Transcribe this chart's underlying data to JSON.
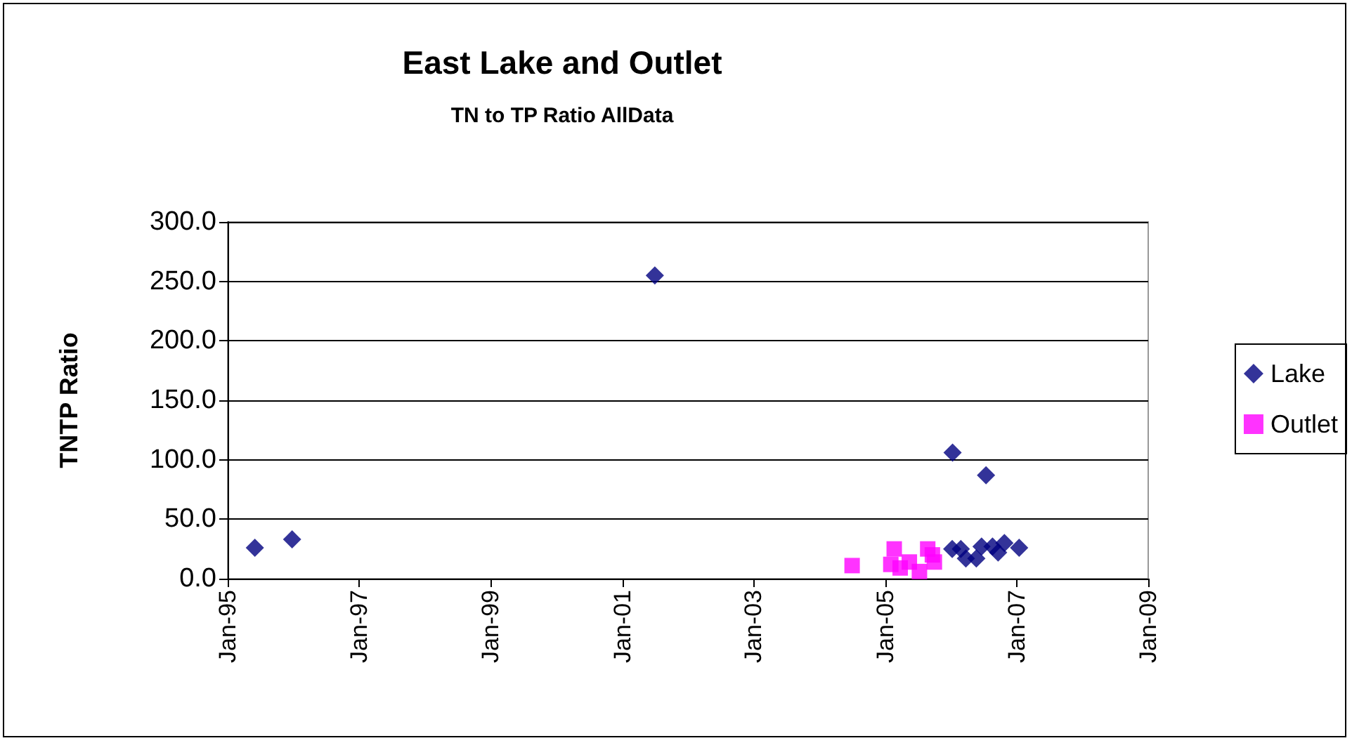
{
  "chart_data": {
    "type": "scatter",
    "title": "East Lake and Outlet",
    "subtitle": "TN to TP Ratio AllData",
    "ylabel": "TNTP Ratio",
    "series": [
      {
        "name": "Lake",
        "color": "#000080",
        "marker": "diamond",
        "x": [
          "1995-06",
          "1995-12-25",
          "2001-07",
          "2006-01-10",
          "2006-07-15",
          "2006-01-08",
          "2006-02-25",
          "2006-03-25",
          "2006-05-22",
          "2006-06-20",
          "2006-08-20",
          "2006-09-20",
          "2006-10-25",
          "2007-01-15"
        ],
        "values": [
          26,
          33,
          255,
          106,
          87,
          25,
          25,
          17,
          17,
          27,
          27,
          22,
          30,
          26
        ]
      },
      {
        "name": "Outlet",
        "color": "#ff00ff",
        "marker": "square",
        "x": [
          "2004-07",
          "2005-02",
          "2005-02-20",
          "2005-03-25",
          "2005-05-15",
          "2005-07-10",
          "2005-08-25",
          "2005-09-20",
          "2005-10-01"
        ],
        "values": [
          11,
          12,
          25,
          9,
          14,
          6,
          25,
          20,
          14
        ]
      }
    ],
    "xlim": [
      "1995-01",
      "2009-01"
    ],
    "xticks": [
      {
        "value": "1995-01",
        "label": "Jan-95"
      },
      {
        "value": "1997-01",
        "label": "Jan-97"
      },
      {
        "value": "1999-01",
        "label": "Jan-99"
      },
      {
        "value": "2001-01",
        "label": "Jan-01"
      },
      {
        "value": "2003-01",
        "label": "Jan-03"
      },
      {
        "value": "2005-01",
        "label": "Jan-05"
      },
      {
        "value": "2007-01",
        "label": "Jan-07"
      },
      {
        "value": "2009-01",
        "label": "Jan-09"
      }
    ],
    "ylim": [
      0,
      300
    ],
    "yticks": [
      {
        "value": 0,
        "label": "0.0"
      },
      {
        "value": 50,
        "label": "50.0"
      },
      {
        "value": 100,
        "label": "100.0"
      },
      {
        "value": 150,
        "label": "150.0"
      },
      {
        "value": 200,
        "label": "200.0"
      },
      {
        "value": 250,
        "label": "250.0"
      },
      {
        "value": 300,
        "label": "300.0"
      }
    ],
    "grid": "y",
    "legend": "right"
  }
}
